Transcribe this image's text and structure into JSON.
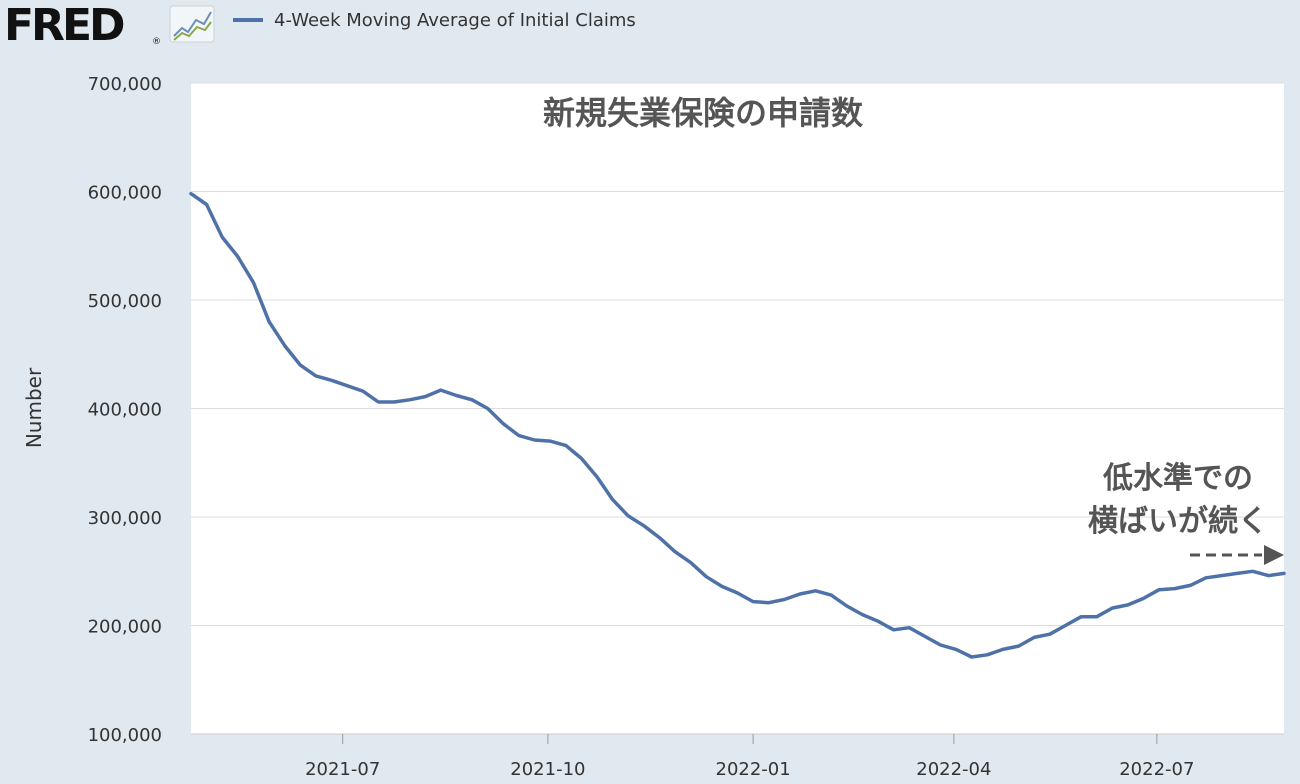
{
  "header": {
    "logo_text": "FRED",
    "logo_registered": "®",
    "legend_label": "4-Week Moving Average of Initial Claims"
  },
  "colors": {
    "page_bg": "#e1e9f0",
    "plot_bg": "#ffffff",
    "series": "#4e72a8",
    "grid": "#dddddd",
    "annotation": "#555555"
  },
  "chart_data": {
    "type": "line",
    "title": "新規失業保険の申請数",
    "xlabel": "",
    "ylabel": "Number",
    "ylim": [
      100000,
      700000
    ],
    "yticks": [
      100000,
      200000,
      300000,
      400000,
      500000,
      600000,
      700000
    ],
    "ytick_labels": [
      "100,000",
      "200,000",
      "300,000",
      "400,000",
      "500,000",
      "600,000",
      "700,000"
    ],
    "xlim": [
      "2021-04-24",
      "2022-08-27"
    ],
    "xticks": [
      "2021-07-01",
      "2021-10-01",
      "2022-01-01",
      "2022-04-01",
      "2022-07-01"
    ],
    "xtick_labels": [
      "2021-07",
      "2021-10",
      "2022-01",
      "2022-04",
      "2022-07"
    ],
    "grid": true,
    "legend_position": "top",
    "series": [
      {
        "name": "4-Week Moving Average of Initial Claims",
        "color": "#4e72a8",
        "x": [
          "2021-04-24",
          "2021-05-01",
          "2021-05-08",
          "2021-05-15",
          "2021-05-22",
          "2021-05-29",
          "2021-06-05",
          "2021-06-12",
          "2021-06-19",
          "2021-06-26",
          "2021-07-03",
          "2021-07-10",
          "2021-07-17",
          "2021-07-24",
          "2021-07-31",
          "2021-08-07",
          "2021-08-14",
          "2021-08-21",
          "2021-08-28",
          "2021-09-04",
          "2021-09-11",
          "2021-09-18",
          "2021-09-25",
          "2021-10-02",
          "2021-10-09",
          "2021-10-16",
          "2021-10-23",
          "2021-10-30",
          "2021-11-06",
          "2021-11-13",
          "2021-11-20",
          "2021-11-27",
          "2021-12-04",
          "2021-12-11",
          "2021-12-18",
          "2021-12-25",
          "2022-01-01",
          "2022-01-08",
          "2022-01-15",
          "2022-01-22",
          "2022-01-29",
          "2022-02-05",
          "2022-02-12",
          "2022-02-19",
          "2022-02-26",
          "2022-03-05",
          "2022-03-12",
          "2022-03-19",
          "2022-03-26",
          "2022-04-02",
          "2022-04-09",
          "2022-04-16",
          "2022-04-23",
          "2022-04-30",
          "2022-05-07",
          "2022-05-14",
          "2022-05-21",
          "2022-05-28",
          "2022-06-04",
          "2022-06-11",
          "2022-06-18",
          "2022-06-25",
          "2022-07-02",
          "2022-07-09",
          "2022-07-16",
          "2022-07-23",
          "2022-07-30",
          "2022-08-06",
          "2022-08-13",
          "2022-08-20",
          "2022-08-27"
        ],
        "values": [
          598000,
          588000,
          558000,
          540000,
          516000,
          480000,
          458000,
          440000,
          430000,
          426000,
          421000,
          416000,
          406000,
          406000,
          408000,
          411000,
          417000,
          412000,
          408000,
          400000,
          386000,
          375000,
          371000,
          370000,
          366000,
          354000,
          337000,
          316000,
          301000,
          292000,
          281000,
          268000,
          258000,
          245000,
          236000,
          230000,
          222000,
          221000,
          224000,
          229000,
          232000,
          228000,
          218000,
          210000,
          204000,
          196000,
          198000,
          190000,
          182000,
          178000,
          171000,
          173000,
          178000,
          181000,
          189000,
          192000,
          200000,
          208000,
          208000,
          216000,
          219000,
          225000,
          233000,
          234000,
          237000,
          244000,
          246000,
          248000,
          250000,
          246000,
          248000
        ]
      }
    ],
    "annotations": [
      {
        "text_line1": "低水準での",
        "text_line2": "横ばいが続く",
        "arrow": "dashed-right"
      }
    ]
  }
}
